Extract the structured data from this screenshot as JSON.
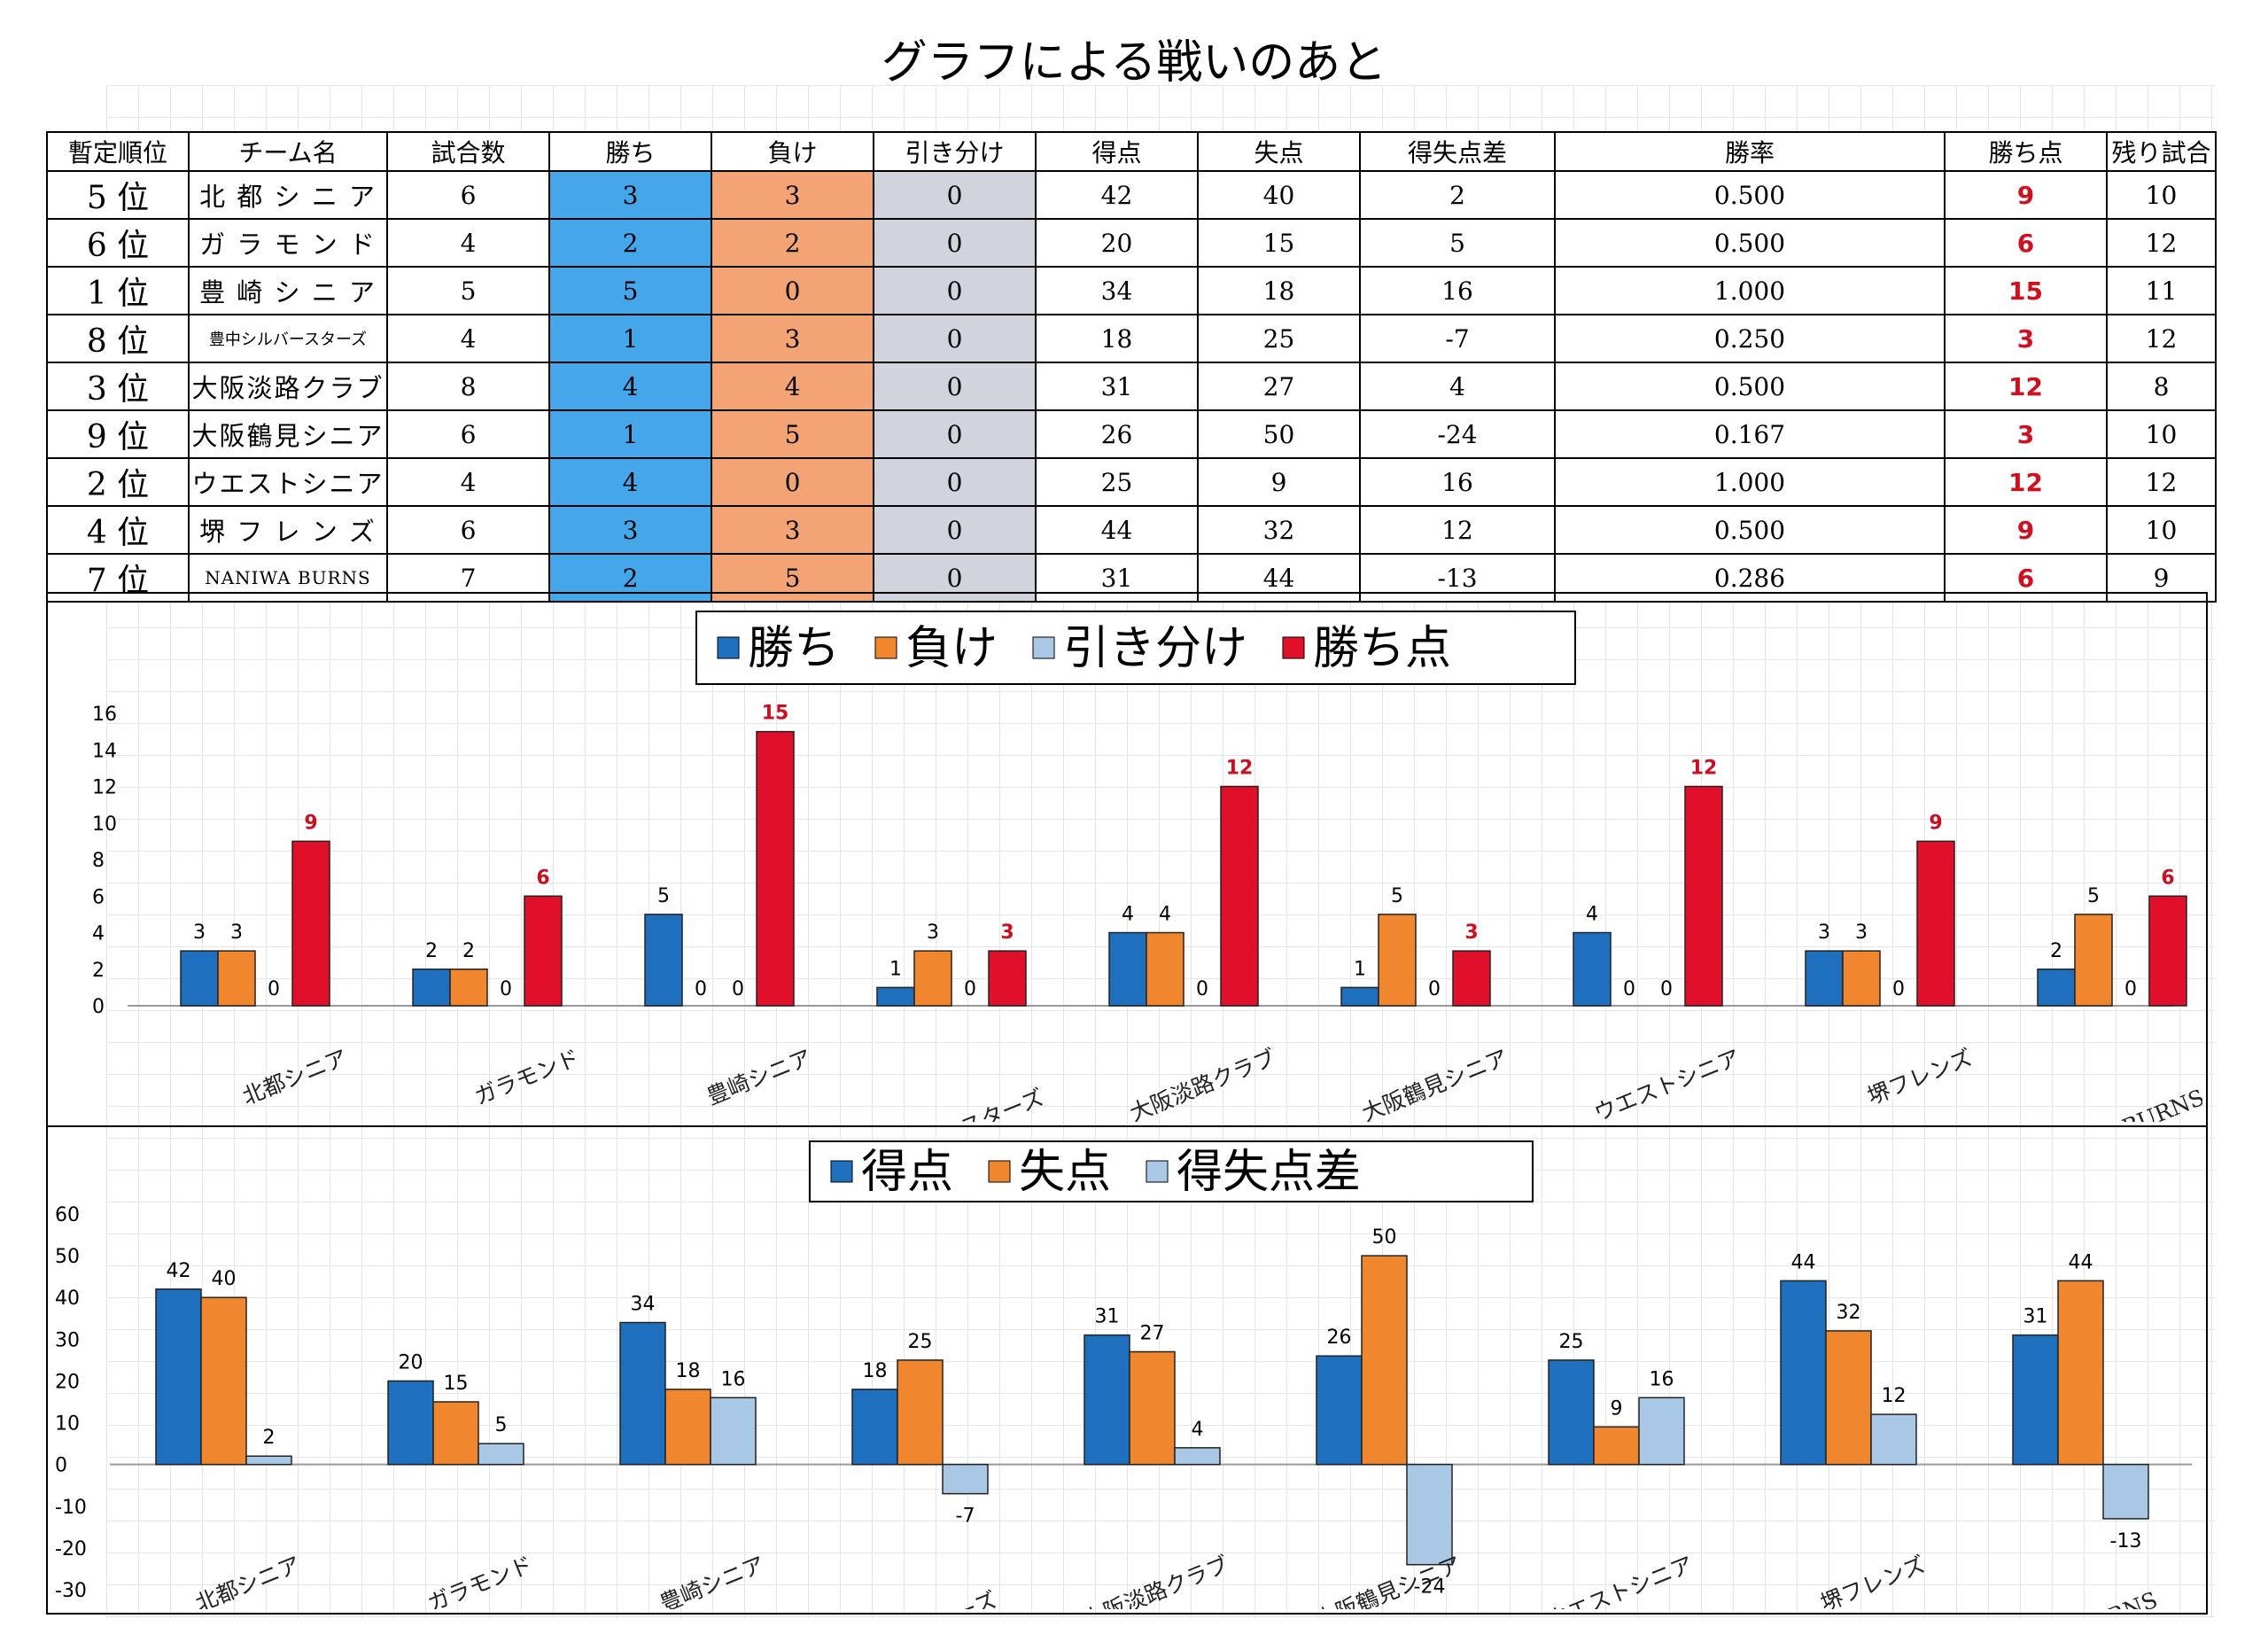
{
  "title": "グラフによる戦いのあと",
  "table": {
    "headers": [
      "暫定順位",
      "チーム名",
      "試合数",
      "勝ち",
      "負け",
      "引き分け",
      "得点",
      "失点",
      "得失点差",
      "勝率",
      "勝ち点",
      "残り試合"
    ],
    "rows": [
      {
        "rank": "5 位",
        "team": "北 都 シ ニ ア",
        "games": "6",
        "wins": "3",
        "losses": "3",
        "draws": "0",
        "scored": "42",
        "conceded": "40",
        "diff": "2",
        "pct": "0.500",
        "points": "9",
        "remaining": "10"
      },
      {
        "rank": "6 位",
        "team": "ガ ラ モ ン ド",
        "games": "4",
        "wins": "2",
        "losses": "2",
        "draws": "0",
        "scored": "20",
        "conceded": "15",
        "diff": "5",
        "pct": "0.500",
        "points": "6",
        "remaining": "12"
      },
      {
        "rank": "1 位",
        "team": "豊 崎 シ ニ ア",
        "games": "5",
        "wins": "5",
        "losses": "0",
        "draws": "0",
        "scored": "34",
        "conceded": "18",
        "diff": "16",
        "pct": "1.000",
        "points": "15",
        "remaining": "11"
      },
      {
        "rank": "8 位",
        "team": "豊中シルバースターズ",
        "games": "4",
        "wins": "1",
        "losses": "3",
        "draws": "0",
        "scored": "18",
        "conceded": "25",
        "diff": "-7",
        "pct": "0.250",
        "points": "3",
        "remaining": "12"
      },
      {
        "rank": "3 位",
        "team": "大阪淡路クラブ",
        "games": "8",
        "wins": "4",
        "losses": "4",
        "draws": "0",
        "scored": "31",
        "conceded": "27",
        "diff": "4",
        "pct": "0.500",
        "points": "12",
        "remaining": "8"
      },
      {
        "rank": "9 位",
        "team": "大阪鶴見シニア",
        "games": "6",
        "wins": "1",
        "losses": "5",
        "draws": "0",
        "scored": "26",
        "conceded": "50",
        "diff": "-24",
        "pct": "0.167",
        "points": "3",
        "remaining": "10"
      },
      {
        "rank": "2 位",
        "team": "ウエストシニア",
        "games": "4",
        "wins": "4",
        "losses": "0",
        "draws": "0",
        "scored": "25",
        "conceded": "9",
        "diff": "16",
        "pct": "1.000",
        "points": "12",
        "remaining": "12"
      },
      {
        "rank": "4 位",
        "team": "堺 フ レ ン ズ",
        "games": "6",
        "wins": "3",
        "losses": "3",
        "draws": "0",
        "scored": "44",
        "conceded": "32",
        "diff": "12",
        "pct": "0.500",
        "points": "9",
        "remaining": "10"
      },
      {
        "rank": "7 位",
        "team": "NANIWA BURNS",
        "games": "7",
        "wins": "2",
        "losses": "5",
        "draws": "0",
        "scored": "31",
        "conceded": "44",
        "diff": "-13",
        "pct": "0.286",
        "points": "6",
        "remaining": "9"
      }
    ]
  },
  "colors": {
    "blue": "#1f6fbf",
    "orange": "#f0872e",
    "lightblue": "#a9c8e6",
    "red": "#e0102a",
    "points_text": "#c81020"
  },
  "chart_data": [
    {
      "type": "bar",
      "categories": [
        "北都シニア",
        "ガラモンド",
        "豊崎シニア",
        "豊中シルバースターズ",
        "大阪淡路クラブ",
        "大阪鶴見シニア",
        "ウエストシニア",
        "堺フレンズ",
        "NANIWA　BURNS"
      ],
      "series": [
        {
          "name": "勝ち",
          "values": [
            3,
            2,
            5,
            1,
            4,
            1,
            4,
            3,
            2
          ],
          "color": "#1f6fbf"
        },
        {
          "name": "負け",
          "values": [
            3,
            2,
            0,
            3,
            4,
            5,
            0,
            3,
            5
          ],
          "color": "#f0872e"
        },
        {
          "name": "引き分け",
          "values": [
            0,
            0,
            0,
            0,
            0,
            0,
            0,
            0,
            0
          ],
          "color": "#a9c8e6"
        },
        {
          "name": "勝ち点",
          "values": [
            9,
            6,
            15,
            3,
            12,
            3,
            12,
            9,
            6
          ],
          "color": "#e0102a"
        }
      ],
      "ylim": [
        0,
        16
      ],
      "yticks": [
        0,
        2,
        4,
        6,
        8,
        10,
        12,
        14,
        16
      ],
      "legend_position": "top",
      "grid": false
    },
    {
      "type": "bar",
      "categories": [
        "北都シニア",
        "ガラモンド",
        "豊崎シニア",
        "豊中シルバースターズ",
        "大阪淡路クラブ",
        "大阪鶴見シニア",
        "ウエストシニア",
        "堺フレンズ",
        "NANIWA　BURNS"
      ],
      "series": [
        {
          "name": "得点",
          "values": [
            42,
            20,
            34,
            18,
            31,
            26,
            25,
            44,
            31
          ],
          "color": "#1f6fbf"
        },
        {
          "name": "失点",
          "values": [
            40,
            15,
            18,
            25,
            27,
            50,
            9,
            32,
            44
          ],
          "color": "#f0872e"
        },
        {
          "name": "得失点差",
          "values": [
            2,
            5,
            16,
            -7,
            4,
            -24,
            16,
            12,
            -13
          ],
          "color": "#a9c8e6"
        }
      ],
      "ylim": [
        -30,
        60
      ],
      "yticks": [
        -30,
        -20,
        -10,
        0,
        10,
        20,
        30,
        40,
        50,
        60
      ],
      "legend_position": "top",
      "grid": false
    }
  ]
}
